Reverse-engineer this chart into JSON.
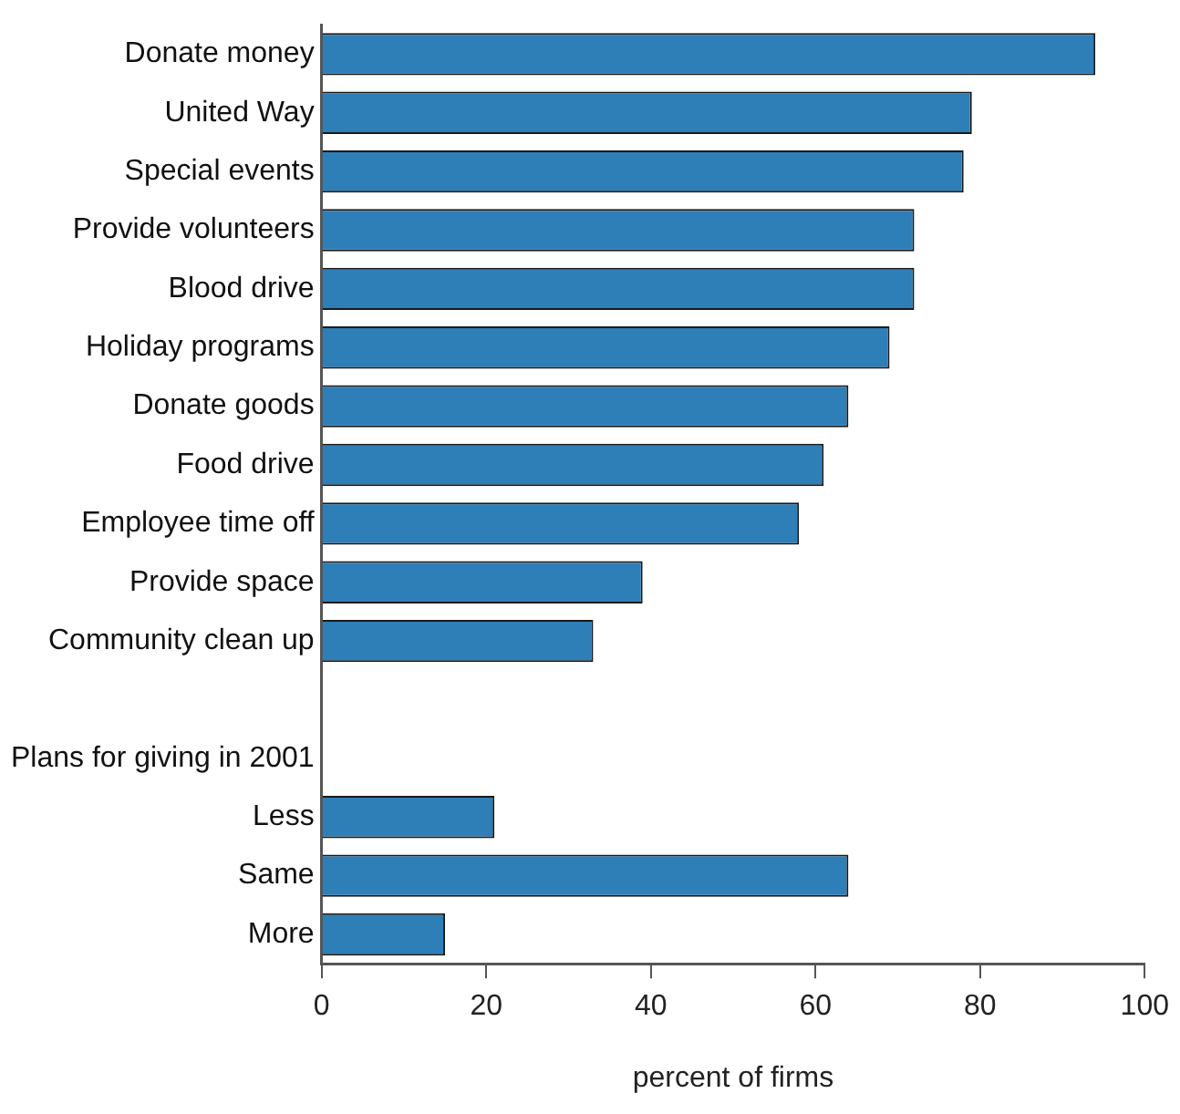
{
  "chart_data": {
    "type": "bar",
    "orientation": "horizontal",
    "xlabel": "percent of firms",
    "categories": [
      "Donate money",
      "United Way",
      "Special events",
      "Provide volunteers",
      "Blood drive",
      "Holiday programs",
      "Donate goods",
      "Food drive",
      "Employee time off",
      "Provide space",
      "Community clean up",
      null,
      "Plans for giving in 2001",
      "Less",
      "Same",
      "More"
    ],
    "values": [
      94,
      79,
      78,
      72,
      72,
      69,
      64,
      61,
      58,
      39,
      33,
      null,
      null,
      21,
      64,
      15
    ],
    "color": "#2e7eb8",
    "xlim": [
      0,
      100
    ],
    "xticks": [
      0,
      20,
      40,
      60,
      80,
      100
    ],
    "grid": false,
    "legend": false
  }
}
